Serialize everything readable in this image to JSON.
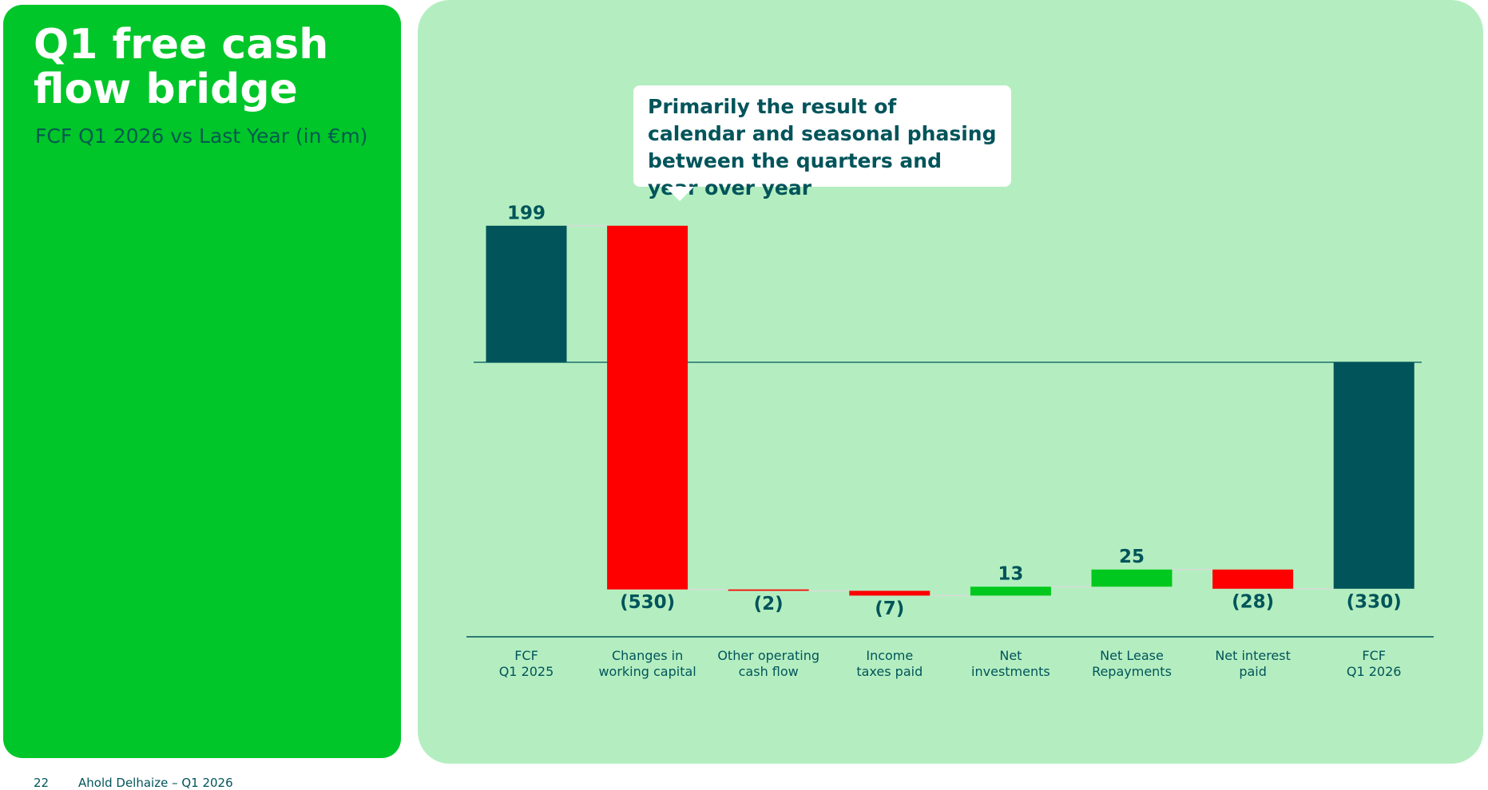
{
  "chart_data": {
    "type": "waterfall",
    "title": "Q1 free cash flow bridge",
    "subtitle": "FCF Q1 2026 vs Last Year (in €m)",
    "annotation": "Primarily the result of calendar and seasonal phasing between the quarters and year over year",
    "categories": [
      "FCF\nQ1 2025",
      "Changes in\nworking capital",
      "Other operating\ncash flow",
      "Income\ntaxes paid",
      "Net\ninvestments",
      "Net Lease\nRepayments",
      "Net interest\npaid",
      "FCF\nQ1 2026"
    ],
    "values": [
      199,
      -530,
      -2,
      -7,
      13,
      25,
      -28,
      -330
    ],
    "value_labels": [
      "199",
      "(530)",
      "(2)",
      "(7)",
      "13",
      "25",
      "(28)",
      "(330)"
    ],
    "is_total": [
      true,
      false,
      false,
      false,
      false,
      false,
      false,
      true
    ],
    "total_color": "#00545a",
    "increase_color": "#00c81e",
    "decrease_color": "#ff0000",
    "ylim": [
      -400,
      250
    ]
  },
  "footer": {
    "page": "22",
    "text": "Ahold Delhaize – Q1 2026"
  }
}
